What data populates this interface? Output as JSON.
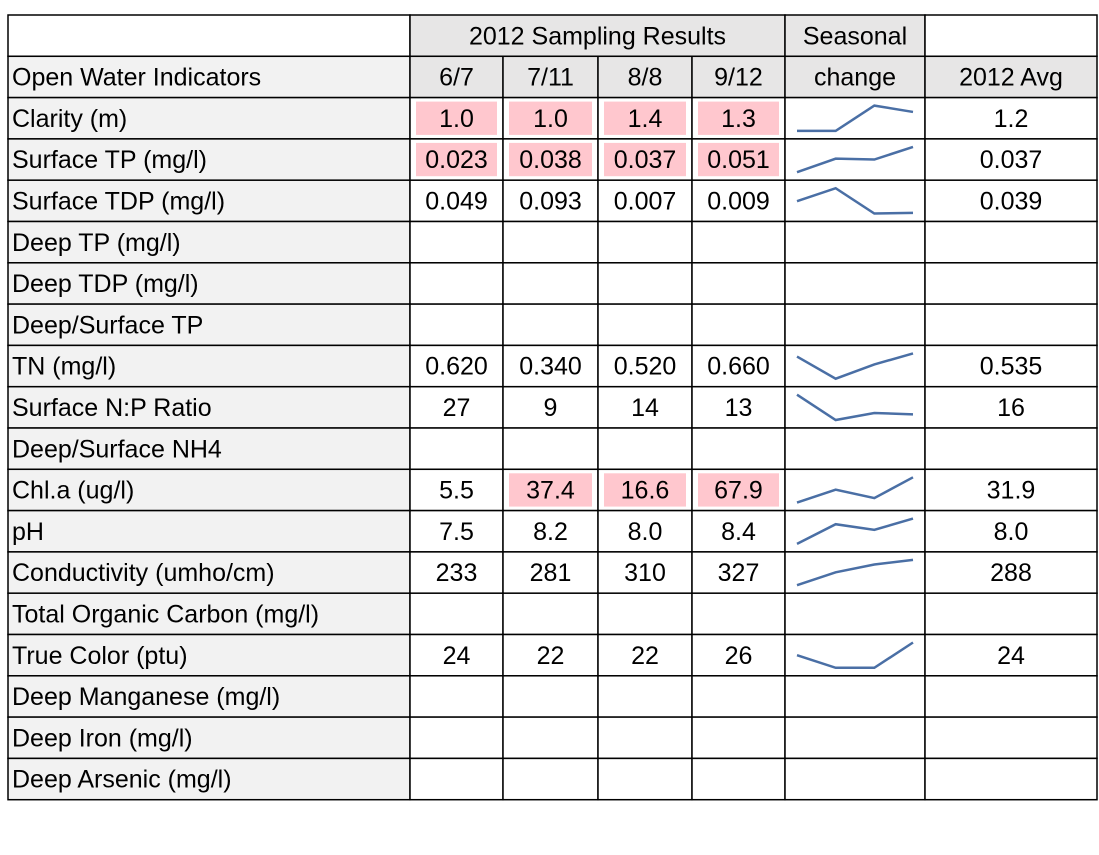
{
  "header": {
    "group": "2012 Sampling Results",
    "label": "Open Water Indicators",
    "dates": [
      "6/7",
      "7/11",
      "8/8",
      "9/12"
    ],
    "trend": [
      "Seasonal",
      "change"
    ],
    "avg": "2012 Avg"
  },
  "table": {
    "rows": [
      {
        "label": "Clarity (m)",
        "values": [
          "1.0",
          "1.0",
          "1.4",
          "1.3"
        ],
        "highlight": [
          true,
          true,
          true,
          true
        ],
        "avg": "1.2"
      },
      {
        "label": "Surface TP (mg/l)",
        "values": [
          "0.023",
          "0.038",
          "0.037",
          "0.051"
        ],
        "highlight": [
          true,
          true,
          true,
          true
        ],
        "avg": "0.037"
      },
      {
        "label": "Surface TDP (mg/l)",
        "values": [
          "0.049",
          "0.093",
          "0.007",
          "0.009"
        ],
        "highlight": [
          false,
          false,
          false,
          false
        ],
        "avg": "0.039"
      },
      {
        "label": "Deep TP (mg/l)"
      },
      {
        "label": "Deep TDP (mg/l)"
      },
      {
        "label": "Deep/Surface TP"
      },
      {
        "label": "TN (mg/l)",
        "values": [
          "0.620",
          "0.340",
          "0.520",
          "0.660"
        ],
        "highlight": [
          false,
          false,
          false,
          false
        ],
        "avg": "0.535"
      },
      {
        "label": "Surface N:P Ratio",
        "values": [
          "27",
          "9",
          "14",
          "13"
        ],
        "highlight": [
          false,
          false,
          false,
          false
        ],
        "avg": "16"
      },
      {
        "label": "Deep/Surface NH4"
      },
      {
        "label": "Chl.a (ug/l)",
        "values": [
          "5.5",
          "37.4",
          "16.6",
          "67.9"
        ],
        "highlight": [
          false,
          true,
          true,
          true
        ],
        "avg": "31.9"
      },
      {
        "label": "pH",
        "values": [
          "7.5",
          "8.2",
          "8.0",
          "8.4"
        ],
        "highlight": [
          false,
          false,
          false,
          false
        ],
        "avg": "8.0"
      },
      {
        "label": "Conductivity (umho/cm)",
        "values": [
          "233",
          "281",
          "310",
          "327"
        ],
        "highlight": [
          false,
          false,
          false,
          false
        ],
        "avg": "288"
      },
      {
        "label": "Total Organic Carbon (mg/l)"
      },
      {
        "label": "True Color (ptu)",
        "values": [
          "24",
          "22",
          "22",
          "26"
        ],
        "highlight": [
          false,
          false,
          false,
          false
        ],
        "avg": "24"
      },
      {
        "label": "Deep Manganese (mg/l)"
      },
      {
        "label": "Deep Iron (mg/l)"
      },
      {
        "label": "Deep Arsenic (mg/l)"
      }
    ]
  }
}
